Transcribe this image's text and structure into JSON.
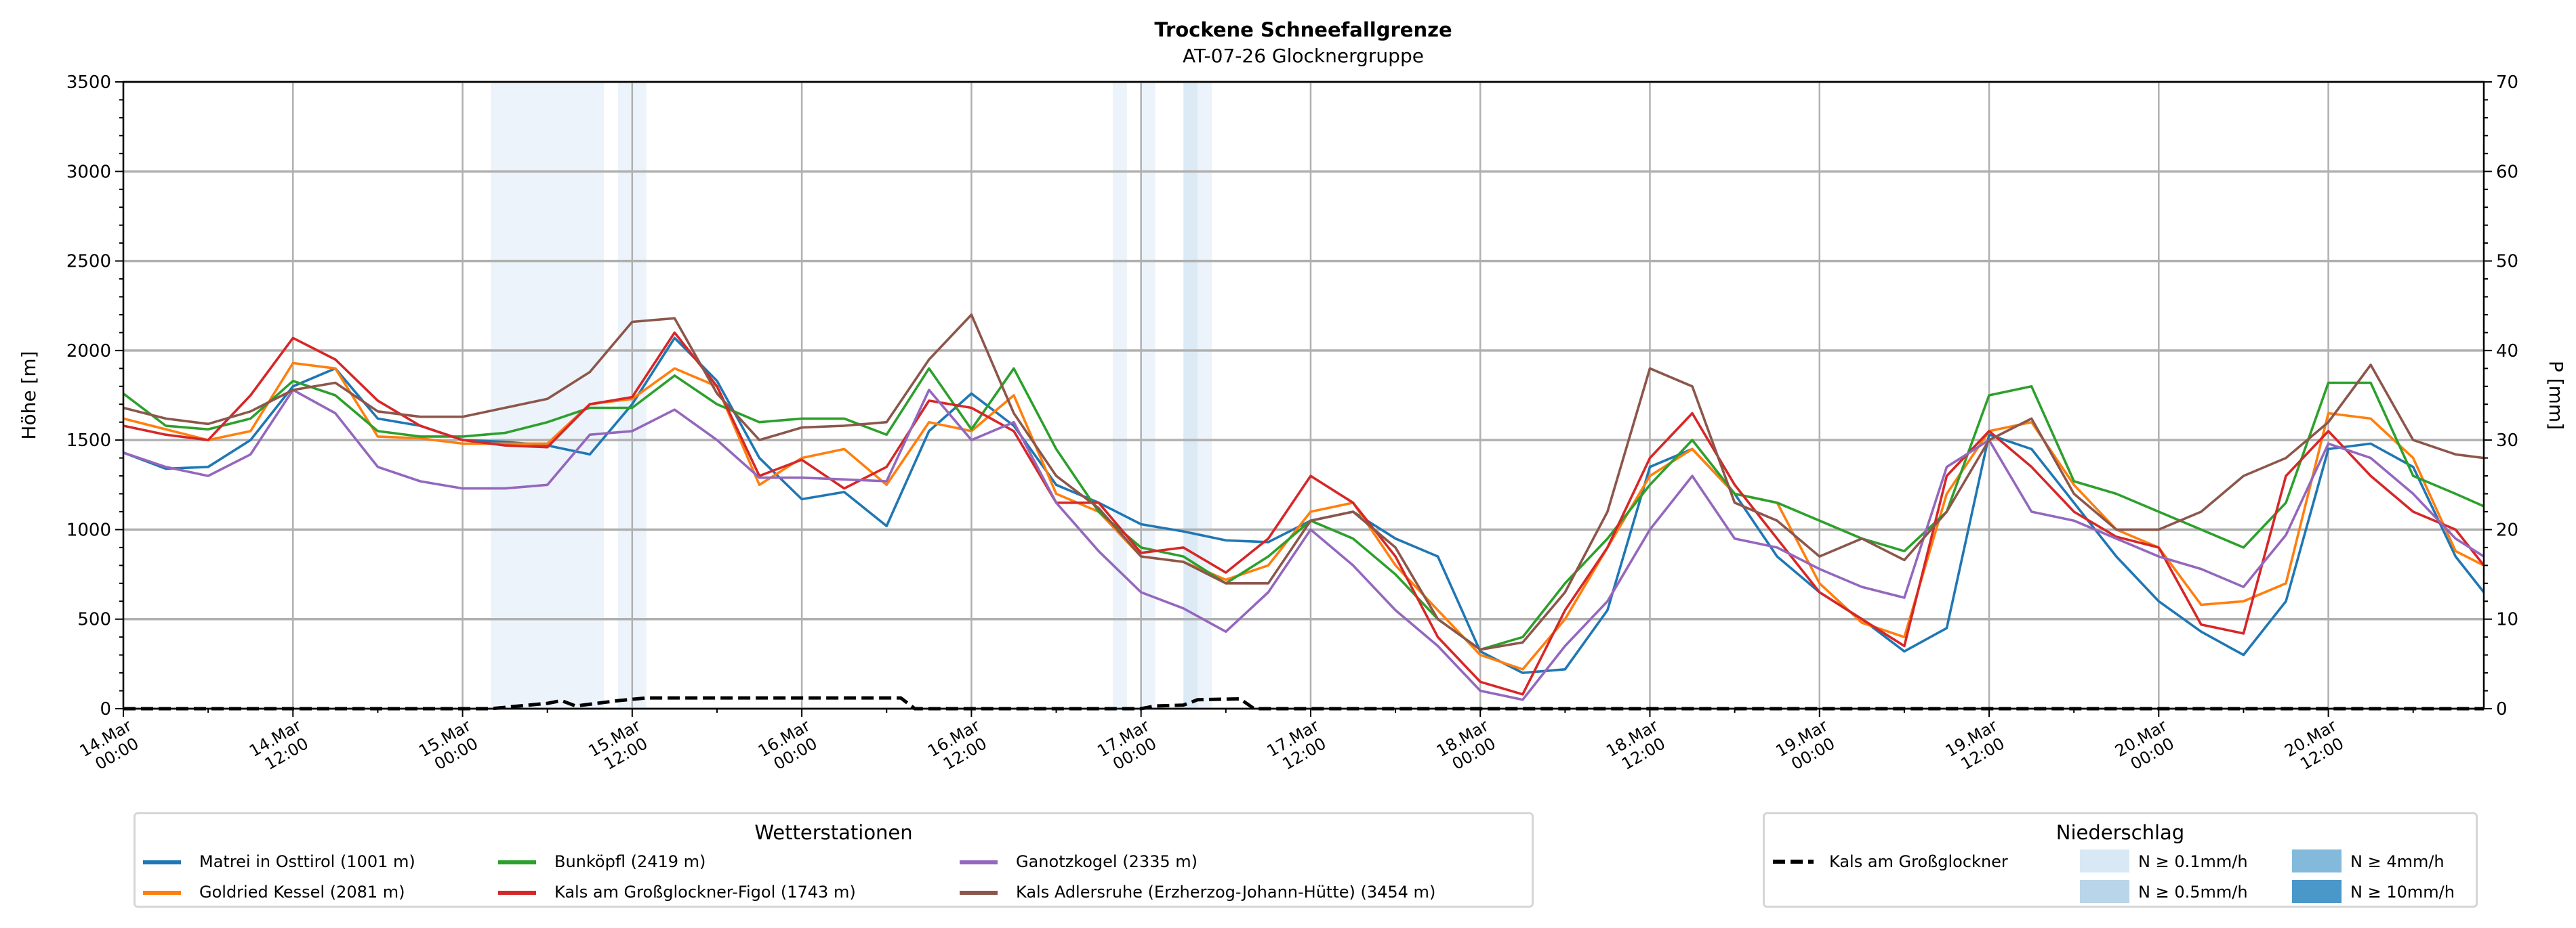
{
  "chart_data": {
    "type": "line",
    "title": "Trockene Schneefallgrenze",
    "subtitle": "AT-07-26 Glocknergruppe",
    "ylabel": "Höhe [m]",
    "ylabel_right": "P [mm]",
    "ylim": [
      0,
      3500
    ],
    "ylim_right": [
      0,
      70
    ],
    "yticks": [
      "0",
      "500",
      "1000",
      "1500",
      "2000",
      "2500",
      "3000",
      "3500"
    ],
    "yticks_right": [
      "0",
      "10",
      "20",
      "30",
      "40",
      "50",
      "60",
      "70"
    ],
    "x_unit": "hours since 14.Mar 00:00",
    "xlim": [
      0,
      167
    ],
    "xticks": [
      {
        "h": 0,
        "l1": "14.Mar",
        "l2": "00:00"
      },
      {
        "h": 12,
        "l1": "14.Mar",
        "l2": "12:00"
      },
      {
        "h": 24,
        "l1": "15.Mar",
        "l2": "00:00"
      },
      {
        "h": 36,
        "l1": "15.Mar",
        "l2": "12:00"
      },
      {
        "h": 48,
        "l1": "16.Mar",
        "l2": "00:00"
      },
      {
        "h": 60,
        "l1": "16.Mar",
        "l2": "12:00"
      },
      {
        "h": 72,
        "l1": "17.Mar",
        "l2": "00:00"
      },
      {
        "h": 84,
        "l1": "17.Mar",
        "l2": "12:00"
      },
      {
        "h": 96,
        "l1": "18.Mar",
        "l2": "00:00"
      },
      {
        "h": 108,
        "l1": "18.Mar",
        "l2": "12:00"
      },
      {
        "h": 120,
        "l1": "19.Mar",
        "l2": "00:00"
      },
      {
        "h": 132,
        "l1": "19.Mar",
        "l2": "12:00"
      },
      {
        "h": 144,
        "l1": "20.Mar",
        "l2": "00:00"
      },
      {
        "h": 156,
        "l1": "20.Mar",
        "l2": "12:00"
      }
    ],
    "grid": true,
    "x": [
      0,
      3,
      6,
      9,
      12,
      15,
      18,
      21,
      24,
      27,
      30,
      33,
      36,
      39,
      42,
      45,
      48,
      51,
      54,
      57,
      60,
      63,
      66,
      69,
      72,
      75,
      78,
      81,
      84,
      87,
      90,
      93,
      96,
      99,
      102,
      105,
      108,
      111,
      114,
      117,
      120,
      123,
      126,
      129,
      132,
      135,
      138,
      141,
      144,
      147,
      150,
      153,
      156,
      159,
      162,
      165,
      167
    ],
    "series": [
      {
        "name": "Matrei in Osttirol (1001 m)",
        "color": "#1f77b4",
        "values": [
          1430,
          1340,
          1350,
          1500,
          1800,
          1900,
          1620,
          1580,
          1500,
          1490,
          1470,
          1420,
          1700,
          2070,
          1830,
          1400,
          1170,
          1210,
          1020,
          1550,
          1760,
          1580,
          1250,
          1150,
          1030,
          990,
          940,
          930,
          1050,
          1100,
          950,
          850,
          320,
          200,
          220,
          550,
          1350,
          1450,
          1200,
          850,
          650,
          500,
          320,
          450,
          1530,
          1450,
          1150,
          850,
          600,
          430,
          300,
          600,
          1450,
          1480,
          1350,
          850,
          650
        ]
      },
      {
        "name": "Goldried Kessel (2081 m)",
        "color": "#ff7f0e",
        "values": [
          1620,
          1560,
          1500,
          1550,
          1930,
          1900,
          1520,
          1510,
          1480,
          1480,
          1480,
          1700,
          1730,
          1900,
          1800,
          1250,
          1400,
          1450,
          1250,
          1600,
          1550,
          1750,
          1200,
          1100,
          850,
          820,
          720,
          800,
          1100,
          1150,
          800,
          550,
          300,
          220,
          500,
          900,
          1300,
          1450,
          1200,
          1150,
          700,
          480,
          400,
          1200,
          1550,
          1600,
          1250,
          1000,
          900,
          580,
          600,
          700,
          1650,
          1620,
          1400,
          880,
          800
        ]
      },
      {
        "name": "Bunköpfl (2419 m)",
        "color": "#2ca02c",
        "values": [
          1760,
          1580,
          1560,
          1620,
          1830,
          1750,
          1550,
          1520,
          1520,
          1540,
          1600,
          1680,
          1680,
          1860,
          1700,
          1600,
          1620,
          1620,
          1530,
          1900,
          1560,
          1900,
          1450,
          1100,
          900,
          850,
          700,
          850,
          1050,
          950,
          750,
          500,
          330,
          400,
          700,
          950,
          1250,
          1500,
          1200,
          1150,
          1050,
          950,
          880,
          1100,
          1750,
          1800,
          1270,
          1200,
          1100,
          1000,
          900,
          1150,
          1820,
          1820,
          1300,
          1200,
          1130
        ]
      },
      {
        "name": "Kals am Großglockner-Figol (1743 m)",
        "color": "#d62728",
        "values": [
          1580,
          1530,
          1500,
          1750,
          2070,
          1950,
          1720,
          1580,
          1500,
          1470,
          1460,
          1700,
          1740,
          2100,
          1800,
          1300,
          1390,
          1230,
          1350,
          1720,
          1680,
          1550,
          1150,
          1150,
          870,
          900,
          760,
          950,
          1300,
          1150,
          850,
          400,
          150,
          80,
          550,
          900,
          1400,
          1650,
          1250,
          950,
          650,
          500,
          350,
          1300,
          1550,
          1350,
          1100,
          960,
          900,
          470,
          420,
          1300,
          1550,
          1300,
          1100,
          1000,
          800
        ]
      },
      {
        "name": "Ganotzkogel (2335 m)",
        "color": "#9467bd",
        "values": [
          1430,
          1350,
          1300,
          1420,
          1780,
          1650,
          1350,
          1270,
          1230,
          1230,
          1250,
          1530,
          1550,
          1670,
          1500,
          1290,
          1290,
          1280,
          1270,
          1780,
          1500,
          1600,
          1150,
          880,
          650,
          560,
          430,
          650,
          1000,
          800,
          550,
          350,
          100,
          50,
          350,
          600,
          1000,
          1300,
          950,
          900,
          780,
          680,
          620,
          1350,
          1500,
          1100,
          1050,
          950,
          850,
          780,
          680,
          970,
          1480,
          1400,
          1200,
          950,
          850
        ]
      },
      {
        "name": "Kals Adlersruhe (Erzherzog-Johann-Hütte) (3454 m)",
        "color": "#8c564b",
        "values": [
          1680,
          1620,
          1590,
          1660,
          1780,
          1820,
          1660,
          1630,
          1630,
          1680,
          1730,
          1880,
          2160,
          2180,
          1760,
          1500,
          1570,
          1580,
          1600,
          1950,
          2200,
          1650,
          1300,
          1120,
          850,
          820,
          700,
          700,
          1050,
          1100,
          900,
          500,
          330,
          370,
          650,
          1100,
          1900,
          1800,
          1150,
          1050,
          850,
          950,
          830,
          1100,
          1500,
          1620,
          1200,
          1000,
          1000,
          1100,
          1300,
          1400,
          1600,
          1920,
          1500,
          1420,
          1400
        ]
      }
    ],
    "precip_series": {
      "name": "Kals am Großglockner",
      "unit": "mm",
      "points": [
        [
          0,
          0
        ],
        [
          26,
          0
        ],
        [
          28,
          0.3
        ],
        [
          30,
          0.6
        ],
        [
          31,
          0.9
        ],
        [
          32,
          0.3
        ],
        [
          33,
          0.5
        ],
        [
          35,
          0.9
        ],
        [
          37,
          1.2
        ],
        [
          55,
          1.2
        ],
        [
          56,
          0
        ],
        [
          72,
          0
        ],
        [
          73,
          0.3
        ],
        [
          75,
          0.4
        ],
        [
          76,
          1.0
        ],
        [
          79,
          1.1
        ],
        [
          80,
          0
        ],
        [
          167,
          0
        ]
      ]
    },
    "precip_bands": [
      {
        "from": 26,
        "to": 34,
        "level": "0.1"
      },
      {
        "from": 35,
        "to": 37,
        "level": "0.1"
      },
      {
        "from": 70,
        "to": 71,
        "level": "0.1"
      },
      {
        "from": 72,
        "to": 73,
        "level": "0.1"
      },
      {
        "from": 75,
        "to": 76,
        "level": "0.5"
      },
      {
        "from": 76,
        "to": 77,
        "level": "0.1"
      }
    ],
    "legend_stations": {
      "title": "Wetterstationen",
      "placement": "bottom-left"
    },
    "legend_precip": {
      "title": "Niederschlag",
      "placement": "bottom-right",
      "line_label": "Kals am Großglockner",
      "levels": [
        {
          "key": "0.1",
          "label": "N ≥ 0.1mm/h",
          "color": "#d9e8f5"
        },
        {
          "key": "0.5",
          "label": "N ≥ 0.5mm/h",
          "color": "#b8d5ea"
        },
        {
          "key": "4",
          "label": "N ≥ 4mm/h",
          "color": "#83b9db"
        },
        {
          "key": "10",
          "label": "N ≥ 10mm/h",
          "color": "#4a97c9"
        }
      ]
    }
  }
}
